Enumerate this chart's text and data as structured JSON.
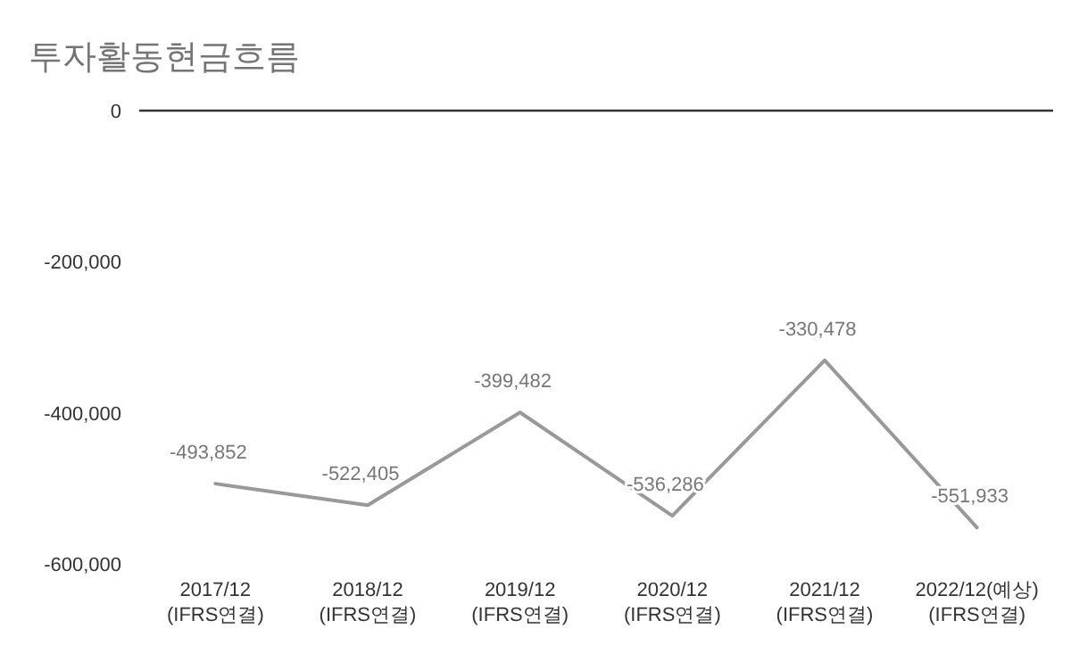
{
  "chart_data": {
    "type": "line",
    "title": "투자활동현금흐름",
    "categories": [
      "2017/12\n(IFRS연결)",
      "2018/12\n(IFRS연결)",
      "2019/12\n(IFRS연결)",
      "2020/12\n(IFRS연결)",
      "2021/12\n(IFRS연결)",
      "2022/12(예상)\n(IFRS연결)"
    ],
    "series": [
      {
        "color": "#999999",
        "values": [
          -493852,
          -522405,
          -399482,
          -536286,
          -330478,
          -551933
        ],
        "value_labels": [
          "-493,852",
          "-522,405",
          "-399,482",
          "-536,286",
          "-330,478",
          "-551,933"
        ]
      }
    ],
    "ylim": [
      -600000,
      0
    ],
    "yticks": [
      {
        "value": 0,
        "label": "0"
      },
      {
        "value": -200000,
        "label": "-200,000"
      },
      {
        "value": -400000,
        "label": "-400,000"
      },
      {
        "value": -600000,
        "label": "-600,000"
      }
    ],
    "grid": false,
    "marker": "none",
    "line_style": "solid"
  }
}
